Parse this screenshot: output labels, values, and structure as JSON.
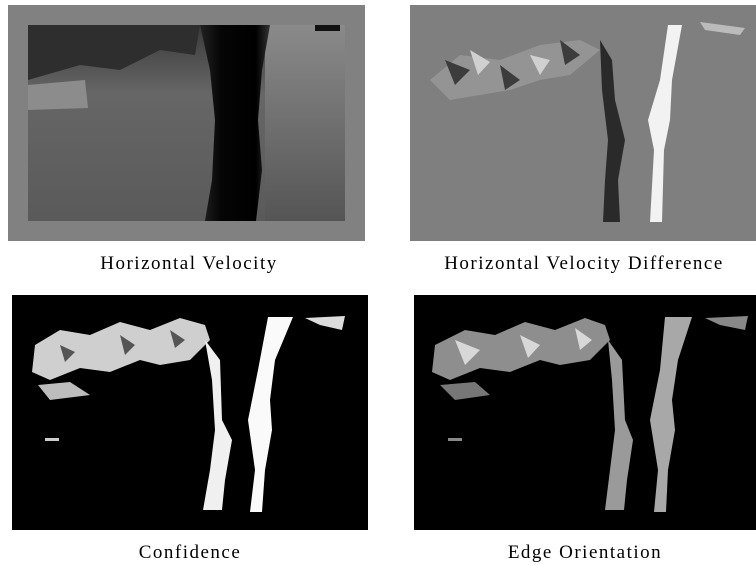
{
  "panels": [
    {
      "caption": "Horizontal Velocity"
    },
    {
      "caption": "Horizontal Velocity Difference"
    },
    {
      "caption": "Confidence"
    },
    {
      "caption": "Edge Orientation"
    }
  ]
}
